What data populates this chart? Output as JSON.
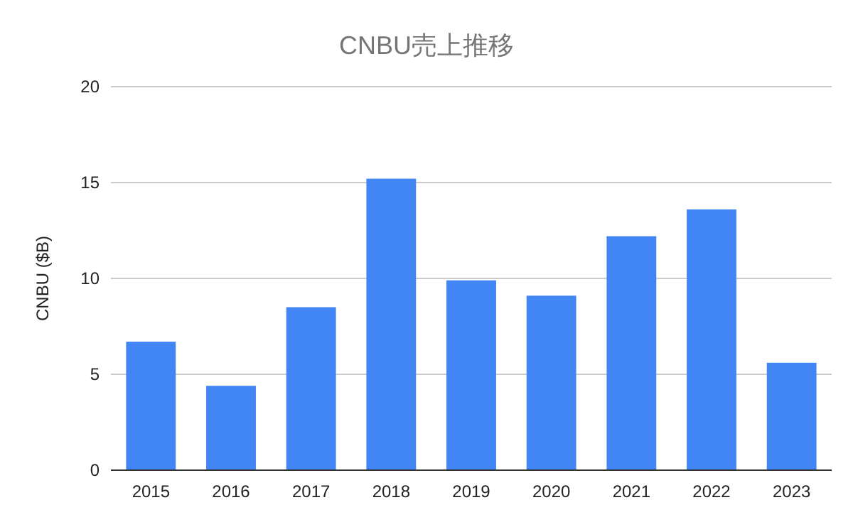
{
  "chart_data": {
    "type": "bar",
    "title": "CNBU売上推移",
    "ylabel": "CNBU ($B)",
    "categories": [
      "2015",
      "2016",
      "2017",
      "2018",
      "2019",
      "2020",
      "2021",
      "2022",
      "2023"
    ],
    "series": [
      {
        "color": "#4285f4",
        "values": [
          6.7,
          4.4,
          8.5,
          15.2,
          9.9,
          9.1,
          12.2,
          13.6,
          5.6
        ]
      }
    ],
    "ylim": [
      0,
      20
    ],
    "yticks": [
      0,
      5,
      10,
      15,
      20
    ],
    "grid": "y"
  }
}
